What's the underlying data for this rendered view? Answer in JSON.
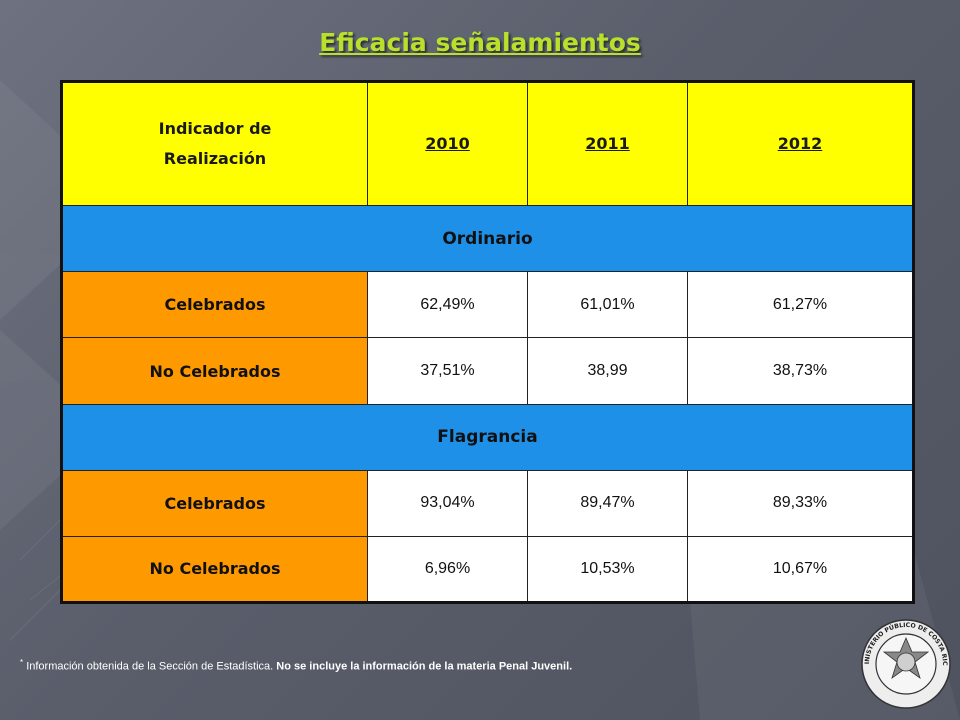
{
  "title": "Eficacia señalamientos",
  "table": {
    "headers": [
      "Indicador de Realización",
      "2010",
      "2011",
      "2012"
    ],
    "sections": [
      {
        "name": "Ordinario",
        "rows": [
          {
            "label": "Celebrados",
            "values": [
              "62,49%",
              "61,01%",
              "61,27%"
            ]
          },
          {
            "label": "No Celebrados",
            "values": [
              "37,51%",
              "38,99",
              "38,73%"
            ]
          }
        ]
      },
      {
        "name": "Flagrancia",
        "rows": [
          {
            "label": "Celebrados",
            "values": [
              "93,04%",
              "89,47%",
              "89,33%"
            ]
          },
          {
            "label": "No Celebrados",
            "values": [
              "6,96%",
              "10,53%",
              "10,67%"
            ]
          }
        ]
      }
    ]
  },
  "footnote": {
    "marker": "*",
    "part1": "Información obtenida de la Sección de Estadística.",
    "part2": "No se incluye la información de la materia Penal Juvenil."
  },
  "seal": {
    "text": "MINISTERIO PÚBLICO DE COSTA RICA"
  },
  "colors": {
    "title": "#b9e02a",
    "header": "#ffff00",
    "section": "#1e90e8",
    "label": "#ff9900",
    "value": "#ffffff"
  },
  "icons": [
    "arrow-decoration",
    "seal-emblem"
  ]
}
